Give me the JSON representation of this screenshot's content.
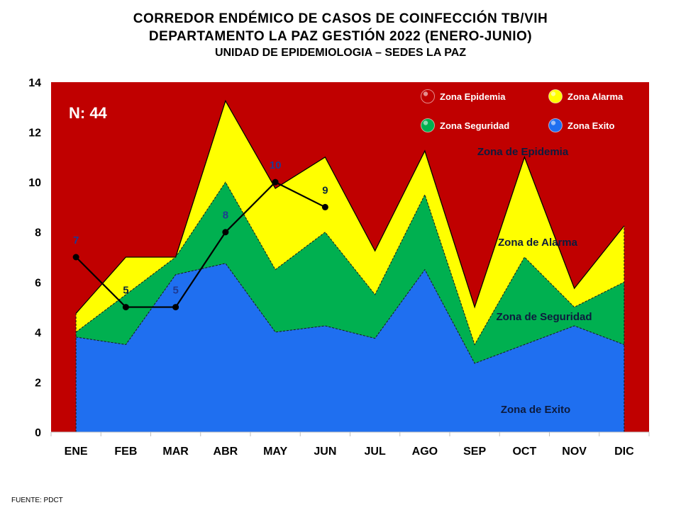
{
  "titles": {
    "line1": "CORREDOR ENDÉMICO DE CASOS DE COINFECCIÓN TB/VIH",
    "line2": "DEPARTAMENTO LA PAZ GESTIÓN 2022 (ENERO-JUNIO)",
    "line3": "UNIDAD DE EPIDEMIOLOGIA – SEDES LA PAZ"
  },
  "source": "FUENTE: PDCT",
  "colors": {
    "epidemia": "#C00000",
    "alarma": "#FFFF00",
    "seguridad": "#00B050",
    "exito": "#1F6FF0",
    "cases_line": "#000000"
  },
  "chart_data": {
    "type": "area",
    "categories": [
      "ENE",
      "FEB",
      "MAR",
      "ABR",
      "MAY",
      "JUN",
      "JUL",
      "AGO",
      "SEP",
      "OCT",
      "NOV",
      "DIC"
    ],
    "ylim": [
      0,
      14
    ],
    "yticks": [
      0,
      2,
      4,
      6,
      8,
      10,
      12,
      14
    ],
    "thresholds": {
      "exito_upper": [
        3.8,
        3.5,
        6.3,
        6.75,
        4.0,
        4.25,
        3.75,
        6.5,
        2.75,
        3.5,
        4.25,
        3.5
      ],
      "seguridad_upper": [
        4.0,
        5.5,
        7.0,
        10.0,
        6.5,
        8.0,
        5.5,
        9.5,
        3.5,
        7.0,
        5.0,
        6.0
      ],
      "alarma_upper": [
        4.75,
        7.0,
        7.0,
        13.25,
        9.75,
        11.0,
        7.25,
        11.25,
        5.0,
        11.0,
        5.75,
        8.25
      ]
    },
    "series": [
      {
        "values": [
          7,
          5,
          5,
          8,
          10,
          9,
          null,
          null,
          null,
          null,
          null,
          null
        ]
      }
    ],
    "data_labels": [
      "7",
      "5",
      "5",
      "8",
      "10",
      "9"
    ],
    "counter_label": "N: 44",
    "legend": {
      "placement": "top-right",
      "items": [
        "Zona Epidemia",
        "Zona Alarma",
        "Zona Seguridad",
        "Zona Exito"
      ]
    },
    "zone_labels": {
      "epidemia": "Zona de Epidemia",
      "alarma": "Zona de Alarma",
      "seguridad": "Zona de Seguridad",
      "exito": "Zona de Exito"
    }
  }
}
